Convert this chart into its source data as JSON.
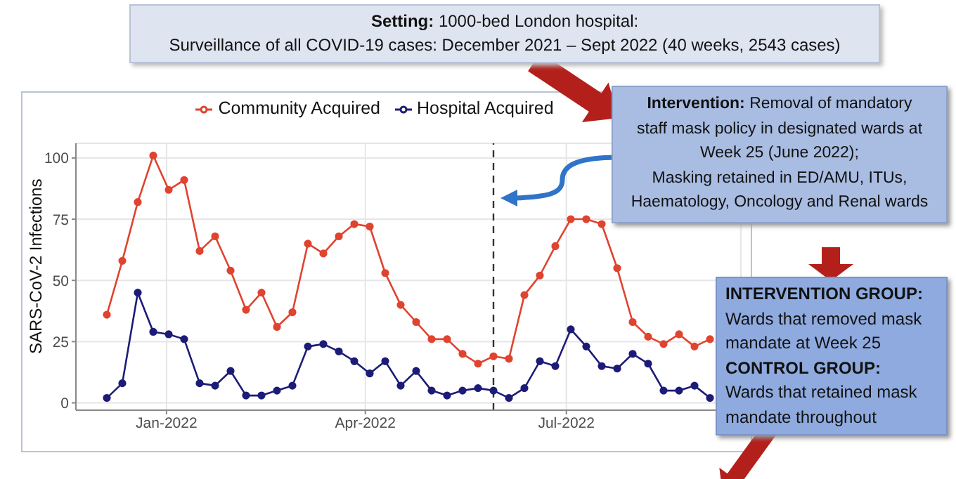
{
  "chart_data": {
    "type": "line",
    "ylabel": "SARS-CoV-2 Infections",
    "x": [
      "2021-12-05",
      "2021-12-12",
      "2021-12-19",
      "2021-12-26",
      "2022-01-02",
      "2022-01-09",
      "2022-01-16",
      "2022-01-23",
      "2022-01-30",
      "2022-02-06",
      "2022-02-13",
      "2022-02-20",
      "2022-02-27",
      "2022-03-06",
      "2022-03-13",
      "2022-03-20",
      "2022-03-27",
      "2022-04-03",
      "2022-04-10",
      "2022-04-17",
      "2022-04-24",
      "2022-05-01",
      "2022-05-08",
      "2022-05-15",
      "2022-05-22",
      "2022-05-29",
      "2022-06-05",
      "2022-06-12",
      "2022-06-19",
      "2022-06-26",
      "2022-07-03",
      "2022-07-10",
      "2022-07-17",
      "2022-07-24",
      "2022-07-31",
      "2022-08-07",
      "2022-08-14",
      "2022-08-21",
      "2022-08-28",
      "2022-09-04"
    ],
    "series": [
      {
        "name": "Community Acquired",
        "color": "#e0432f",
        "values": [
          36,
          58,
          82,
          101,
          87,
          91,
          62,
          68,
          54,
          38,
          45,
          31,
          37,
          65,
          61,
          68,
          73,
          72,
          53,
          40,
          33,
          26,
          26,
          20,
          16,
          19,
          18,
          44,
          52,
          64,
          75,
          75,
          73,
          55,
          33,
          27,
          24,
          28,
          23,
          26
        ]
      },
      {
        "name": "Hospital Acquired",
        "color": "#1c1c78",
        "values": [
          2,
          8,
          45,
          29,
          28,
          26,
          8,
          7,
          13,
          3,
          3,
          5,
          7,
          23,
          24,
          21,
          17,
          12,
          17,
          7,
          13,
          5,
          3,
          5,
          6,
          5,
          2,
          6,
          17,
          15,
          30,
          23,
          15,
          14,
          20,
          16,
          5,
          5,
          7,
          2
        ]
      }
    ],
    "xlim": [
      "2021-11-21",
      "2022-09-18"
    ],
    "xticks": [
      {
        "value": "2022-01-01",
        "label": "Jan-2022"
      },
      {
        "value": "2022-04-01",
        "label": "Apr-2022"
      },
      {
        "value": "2022-07-01",
        "label": "Jul-2022"
      }
    ],
    "ylim": [
      -3,
      106
    ],
    "yticks": [
      0,
      25,
      50,
      75,
      100
    ],
    "grid": true,
    "legend": "top",
    "marker": "circle",
    "line_style": "solid",
    "ref_lines": [
      {
        "axis": "x",
        "value": "2022-05-29",
        "color": "#333333",
        "line_style": "dashed"
      }
    ],
    "annotations": [
      "Setting: 1000-bed London hospital:",
      "Surveillance of all COVID-19 cases: December 2021 – Sept 2022 (40 weeks, 2543 cases)",
      "Intervention: Removal of mandatory staff mask policy in designated wards at Week 25 (June 2022);",
      "Masking retained in ED/AMU, ITUs, Haematology, Oncology and Renal wards",
      "INTERVENTION GROUP: Wards that removed mask mandate at Week 25",
      "CONTROL GROUP: Wards that retained mask mandate throughout"
    ]
  }
}
